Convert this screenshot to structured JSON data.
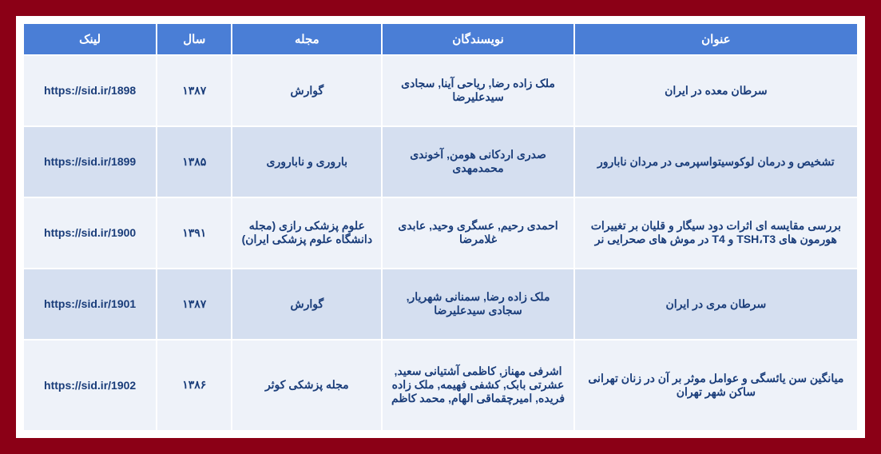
{
  "headers": {
    "title": "عنوان",
    "authors": "نویسندگان",
    "journal": "مجله",
    "year": "سال",
    "link": "لینک"
  },
  "rows": [
    {
      "title": "سرطان معده در ایران",
      "authors": "ملک زاده رضا, ریاحی آینا, سجادی سیدعلیرضا",
      "journal": "گوارش",
      "year": "۱۳۸۷",
      "link": "https://sid.ir/1898"
    },
    {
      "title": "تشخیص و درمان لوکوسیتواسپرمی در مردان نابارور",
      "authors": "صدری اردکانی هومن, آخوندی محمدمهدی",
      "journal": "باروری و ناباروری",
      "year": "۱۳۸۵",
      "link": "https://sid.ir/1899"
    },
    {
      "title": "بررسی مقایسه ای اثرات دود سیگار و قلیان بر تغییرات هورمون های  TSH،T3 و T4 در موش های صحرایی نر",
      "authors": "احمدی رحیم, عسگری وحید, عابدی غلامرضا",
      "journal": "علوم پزشکی رازی (مجله دانشگاه علوم پزشکی ایران)",
      "year": "۱۳۹۱",
      "link": "https://sid.ir/1900"
    },
    {
      "title": "سرطان مری در ایران",
      "authors": "ملک زاده رضا, سمنانی شهریار, سجادی سیدعلیرضا",
      "journal": "گوارش",
      "year": "۱۳۸۷",
      "link": "https://sid.ir/1901"
    },
    {
      "title": "میانگین سن یائسگی و عوامل موثر بر آن در زنان تهرانی ساکن شهر تهران",
      "authors": "اشرفی مهناز, کاظمی آشتیانی سعید, عشرتی بابک, کشفی فهیمه, ملک زاده فریده, امیرچقماقی الهام, محمد کاظم",
      "journal": "مجله پزشکی کوثر",
      "year": "۱۳۸۶",
      "link": "https://sid.ir/1902"
    }
  ],
  "colors": {
    "header_bg": "#4a7ed6",
    "header_text": "#ffffff",
    "row_even_bg": "#d5dff0",
    "row_odd_bg": "#eef2f9",
    "cell_text": "#1a3d7a",
    "outer_frame": "#8b0016",
    "border": "#ffffff"
  }
}
